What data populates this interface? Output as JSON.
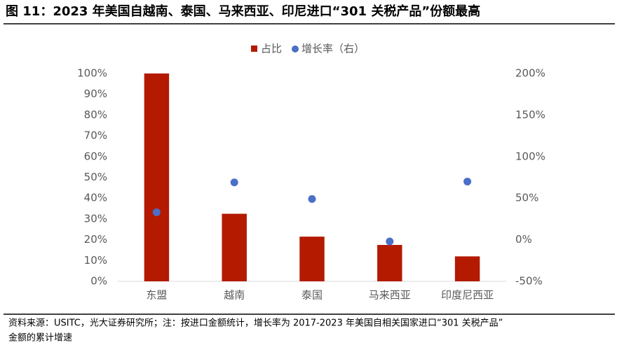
{
  "chart_data": {
    "type": "bar_scatter",
    "title": "图 11：2023 年美国自越南、泰国、马来西亚、印尼进口“301 关税产品”份额最高",
    "categories": [
      "东盟",
      "越南",
      "泰国",
      "马来西亚",
      "印度尼西亚"
    ],
    "series": [
      {
        "name": "占比",
        "type": "bar",
        "color": "#b31a00",
        "values": [
          100,
          32.5,
          21.5,
          17.5,
          12
        ]
      },
      {
        "name": "增长率（右）",
        "type": "scatter",
        "axis": "y2",
        "color": "#4a6fc8",
        "values": [
          33,
          69,
          49,
          -2,
          70
        ]
      }
    ],
    "ylim": [
      0,
      100
    ],
    "yticks": [
      {
        "value": 0,
        "label": "0%"
      },
      {
        "value": 10,
        "label": "10%"
      },
      {
        "value": 20,
        "label": "20%"
      },
      {
        "value": 30,
        "label": "30%"
      },
      {
        "value": 40,
        "label": "40%"
      },
      {
        "value": 50,
        "label": "50%"
      },
      {
        "value": 60,
        "label": "60%"
      },
      {
        "value": 70,
        "label": "70%"
      },
      {
        "value": 80,
        "label": "80%"
      },
      {
        "value": 90,
        "label": "90%"
      },
      {
        "value": 100,
        "label": "100%"
      }
    ],
    "y2lim": [
      -50,
      200
    ],
    "y2ticks": [
      {
        "value": -50,
        "label": "-50%"
      },
      {
        "value": 0,
        "label": "0%"
      },
      {
        "value": 50,
        "label": "50%"
      },
      {
        "value": 100,
        "label": "100%"
      },
      {
        "value": 150,
        "label": "150%"
      },
      {
        "value": 200,
        "label": "200%"
      }
    ],
    "legend": "top",
    "source": [
      "资料来源：USITC，光大证券研究所；注：按进口金额统计，增长率为 2017-2023 年美国自相关国家进口“301 关税产品”",
      "金额的累计增速"
    ]
  }
}
